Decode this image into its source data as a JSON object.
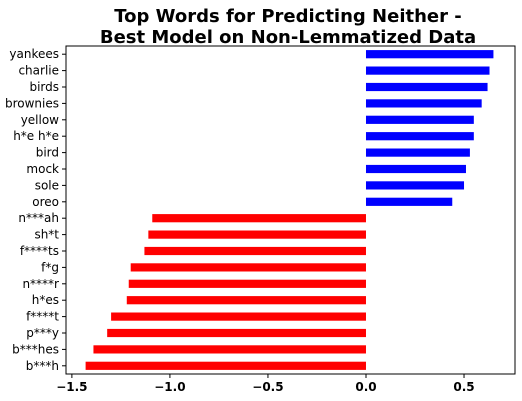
{
  "chart_data": {
    "type": "bar",
    "orientation": "horizontal",
    "title": "Top Words for Predicting Neither -\nBest Model on Non-Lemmatized Data",
    "xlabel": "",
    "ylabel": "",
    "xlim": [
      -1.53,
      0.76
    ],
    "xticks": [
      -1.5,
      -1.0,
      -0.5,
      0.0,
      0.5
    ],
    "xtick_labels": [
      "−1.5",
      "−1.0",
      "−0.5",
      "0.0",
      "0.5"
    ],
    "grid": false,
    "legend": "none",
    "categories": [
      "yankees",
      "charlie",
      "birds",
      "brownies",
      "yellow",
      "h*e h*e",
      "bird",
      "mock",
      "sole",
      "oreo",
      "n***ah",
      "sh*t",
      "f****ts",
      "f*g",
      "n****r",
      "h*es",
      "f****t",
      "p***y",
      "b***hes",
      "b***h"
    ],
    "values": [
      0.65,
      0.63,
      0.62,
      0.59,
      0.55,
      0.55,
      0.53,
      0.51,
      0.5,
      0.44,
      -1.09,
      -1.11,
      -1.13,
      -1.2,
      -1.21,
      -1.22,
      -1.3,
      -1.32,
      -1.39,
      -1.43
    ],
    "colors": {
      "positive": "#0000ff",
      "negative": "#ff0000"
    }
  }
}
